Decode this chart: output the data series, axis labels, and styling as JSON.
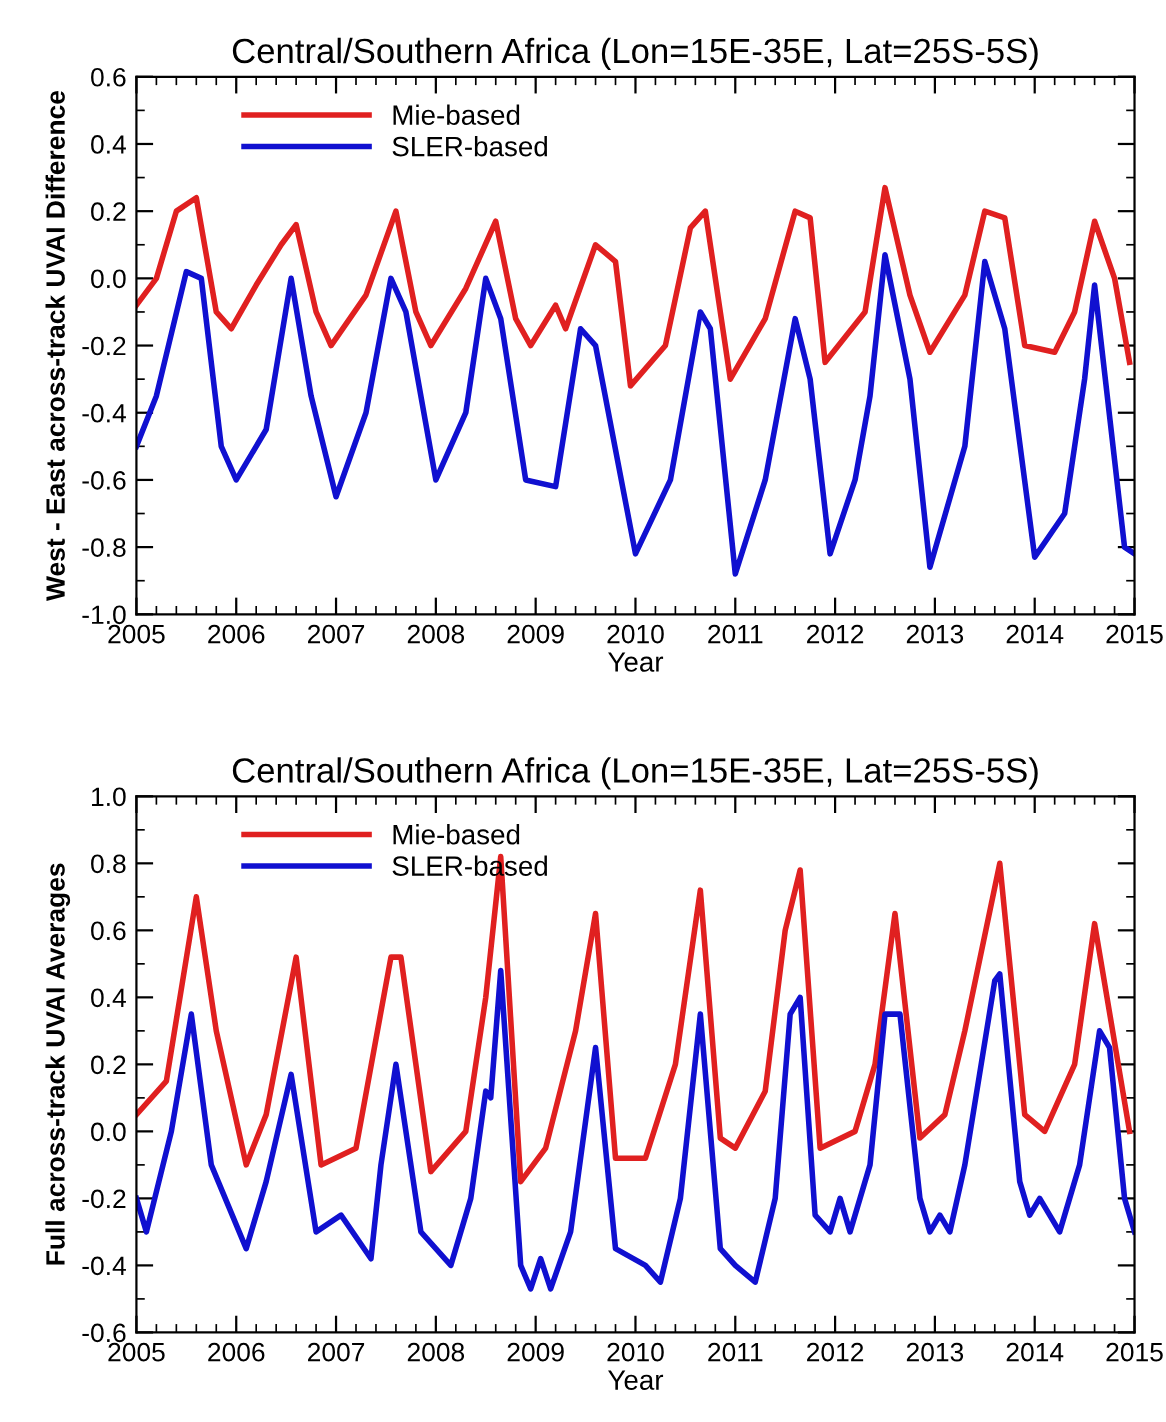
{
  "chart_data": [
    {
      "type": "line",
      "title": "Central/Southern Africa (Lon=15E-35E, Lat=25S-5S)",
      "xlabel": "Year",
      "ylabel": "West - East across-track UVAI Difference",
      "xlim": [
        2005,
        2015
      ],
      "xticks": [
        2005,
        2006,
        2007,
        2008,
        2009,
        2010,
        2011,
        2012,
        2013,
        2014,
        2015
      ],
      "ylim": [
        -1.0,
        0.6
      ],
      "yticks": [
        {
          "value": -1.0,
          "label": "-1.0"
        },
        {
          "value": -0.8,
          "label": "-0.8"
        },
        {
          "value": -0.6,
          "label": "-0.6"
        },
        {
          "value": -0.4,
          "label": "-0.4"
        },
        {
          "value": -0.2,
          "label": "-0.2"
        },
        {
          "value": 0.0,
          "label": "0.0"
        },
        {
          "value": 0.2,
          "label": "0.2"
        },
        {
          "value": 0.4,
          "label": "0.4"
        },
        {
          "value": 0.6,
          "label": "0.6"
        }
      ],
      "grid": false,
      "legend": "top left",
      "line_style": "solid",
      "marker": "none",
      "series": [
        {
          "name": "Mie-based",
          "color": "#e02020",
          "x": [
            2005.0,
            2005.2,
            2005.4,
            2005.6,
            2005.8,
            2005.95,
            2006.2,
            2006.45,
            2006.6,
            2006.8,
            2006.95,
            2007.3,
            2007.6,
            2007.8,
            2007.95,
            2008.3,
            2008.6,
            2008.8,
            2008.95,
            2009.2,
            2009.3,
            2009.6,
            2009.8,
            2009.95,
            2010.3,
            2010.55,
            2010.7,
            2010.95,
            2011.3,
            2011.6,
            2011.75,
            2011.9,
            2012.3,
            2012.5,
            2012.75,
            2012.95,
            2013.3,
            2013.5,
            2013.7,
            2013.9,
            2014.2,
            2014.4,
            2014.6,
            2014.8,
            2014.95
          ],
          "values": [
            -0.08,
            0.0,
            0.2,
            0.24,
            -0.1,
            -0.15,
            -0.02,
            0.1,
            0.16,
            -0.1,
            -0.2,
            -0.05,
            0.2,
            -0.1,
            -0.2,
            -0.03,
            0.17,
            -0.12,
            -0.2,
            -0.08,
            -0.15,
            0.1,
            0.05,
            -0.32,
            -0.2,
            0.15,
            0.2,
            -0.3,
            -0.12,
            0.2,
            0.18,
            -0.25,
            -0.1,
            0.27,
            -0.05,
            -0.22,
            -0.05,
            0.2,
            0.18,
            -0.2,
            -0.22,
            -0.1,
            0.17,
            0.0,
            -0.25
          ]
        },
        {
          "name": "SLER-based",
          "color": "#1010d0",
          "x": [
            2005.0,
            2005.2,
            2005.5,
            2005.65,
            2005.85,
            2006.0,
            2006.3,
            2006.55,
            2006.75,
            2007.0,
            2007.3,
            2007.55,
            2007.7,
            2008.0,
            2008.3,
            2008.5,
            2008.65,
            2008.9,
            2009.2,
            2009.45,
            2009.6,
            2010.0,
            2010.35,
            2010.65,
            2010.75,
            2011.0,
            2011.3,
            2011.6,
            2011.75,
            2011.95,
            2012.2,
            2012.35,
            2012.5,
            2012.75,
            2012.95,
            2013.3,
            2013.5,
            2013.7,
            2014.0,
            2014.3,
            2014.5,
            2014.6,
            2014.9,
            2015.0
          ],
          "values": [
            -0.5,
            -0.35,
            0.02,
            0.0,
            -0.5,
            -0.6,
            -0.45,
            0.0,
            -0.35,
            -0.65,
            -0.4,
            0.0,
            -0.1,
            -0.6,
            -0.4,
            0.0,
            -0.12,
            -0.6,
            -0.62,
            -0.15,
            -0.2,
            -0.82,
            -0.6,
            -0.1,
            -0.15,
            -0.88,
            -0.6,
            -0.12,
            -0.3,
            -0.82,
            -0.6,
            -0.35,
            0.07,
            -0.3,
            -0.86,
            -0.5,
            0.05,
            -0.15,
            -0.83,
            -0.7,
            -0.3,
            -0.02,
            -0.8,
            -0.82
          ]
        }
      ]
    },
    {
      "type": "line",
      "title": "Central/Southern Africa (Lon=15E-35E, Lat=25S-5S)",
      "xlabel": "Year",
      "ylabel": "Full across-track UVAI Averages",
      "xlim": [
        2005,
        2015
      ],
      "xticks": [
        2005,
        2006,
        2007,
        2008,
        2009,
        2010,
        2011,
        2012,
        2013,
        2014,
        2015
      ],
      "ylim": [
        -0.6,
        1.0
      ],
      "yticks": [
        {
          "value": -0.6,
          "label": "-0.6"
        },
        {
          "value": -0.4,
          "label": "-0.4"
        },
        {
          "value": -0.2,
          "label": "-0.2"
        },
        {
          "value": 0.0,
          "label": "0.0"
        },
        {
          "value": 0.2,
          "label": "0.2"
        },
        {
          "value": 0.4,
          "label": "0.4"
        },
        {
          "value": 0.6,
          "label": "0.6"
        },
        {
          "value": 0.8,
          "label": "0.8"
        },
        {
          "value": 1.0,
          "label": "1.0"
        }
      ],
      "grid": false,
      "legend": "top left",
      "line_style": "solid",
      "marker": "none",
      "series": [
        {
          "name": "Mie-based",
          "color": "#e02020",
          "x": [
            2005.0,
            2005.3,
            2005.6,
            2005.8,
            2006.1,
            2006.3,
            2006.6,
            2006.85,
            2007.2,
            2007.55,
            2007.65,
            2007.95,
            2008.3,
            2008.5,
            2008.65,
            2008.85,
            2009.1,
            2009.4,
            2009.6,
            2009.8,
            2010.1,
            2010.4,
            2010.65,
            2010.85,
            2011.0,
            2011.3,
            2011.5,
            2011.65,
            2011.85,
            2012.2,
            2012.4,
            2012.6,
            2012.85,
            2013.1,
            2013.3,
            2013.65,
            2013.9,
            2014.1,
            2014.4,
            2014.6,
            2014.95
          ],
          "values": [
            0.05,
            0.15,
            0.7,
            0.3,
            -0.1,
            0.05,
            0.52,
            -0.1,
            -0.05,
            0.52,
            0.52,
            -0.12,
            0.0,
            0.4,
            0.82,
            -0.15,
            -0.05,
            0.3,
            0.65,
            -0.08,
            -0.08,
            0.2,
            0.72,
            -0.02,
            -0.05,
            0.12,
            0.6,
            0.78,
            -0.05,
            0.0,
            0.2,
            0.65,
            -0.02,
            0.05,
            0.3,
            0.8,
            0.05,
            0.0,
            0.2,
            0.62,
            0.0
          ]
        },
        {
          "name": "SLER-based",
          "color": "#1010d0",
          "x": [
            2005.0,
            2005.1,
            2005.35,
            2005.55,
            2005.75,
            2006.1,
            2006.3,
            2006.55,
            2006.8,
            2007.05,
            2007.35,
            2007.45,
            2007.6,
            2007.85,
            2008.15,
            2008.35,
            2008.5,
            2008.55,
            2008.65,
            2008.85,
            2008.95,
            2009.05,
            2009.15,
            2009.35,
            2009.6,
            2009.8,
            2010.1,
            2010.25,
            2010.45,
            2010.65,
            2010.85,
            2011.0,
            2011.2,
            2011.4,
            2011.55,
            2011.65,
            2011.8,
            2011.95,
            2012.05,
            2012.15,
            2012.35,
            2012.5,
            2012.65,
            2012.85,
            2012.95,
            2013.05,
            2013.15,
            2013.3,
            2013.6,
            2013.65,
            2013.85,
            2013.95,
            2014.05,
            2014.25,
            2014.45,
            2014.65,
            2014.75,
            2014.9,
            2015.0
          ],
          "values": [
            -0.2,
            -0.3,
            0.0,
            0.35,
            -0.1,
            -0.35,
            -0.15,
            0.17,
            -0.3,
            -0.25,
            -0.38,
            -0.1,
            0.2,
            -0.3,
            -0.4,
            -0.2,
            0.12,
            0.1,
            0.48,
            -0.4,
            -0.47,
            -0.38,
            -0.47,
            -0.3,
            0.25,
            -0.35,
            -0.4,
            -0.45,
            -0.2,
            0.35,
            -0.35,
            -0.4,
            -0.45,
            -0.2,
            0.35,
            0.4,
            -0.25,
            -0.3,
            -0.2,
            -0.3,
            -0.1,
            0.35,
            0.35,
            -0.2,
            -0.3,
            -0.25,
            -0.3,
            -0.1,
            0.45,
            0.47,
            -0.15,
            -0.25,
            -0.2,
            -0.3,
            -0.1,
            0.3,
            0.25,
            -0.2,
            -0.3
          ]
        }
      ]
    }
  ]
}
